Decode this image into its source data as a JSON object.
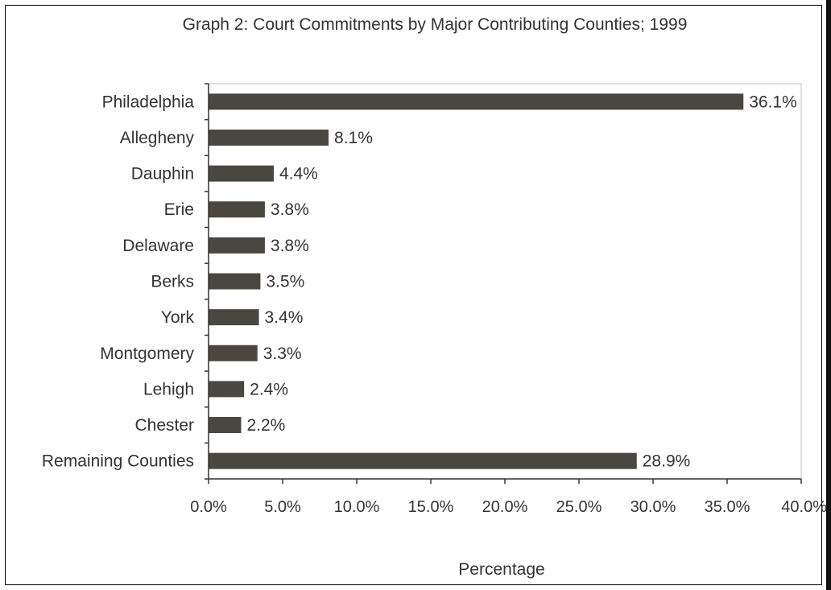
{
  "chart_data": {
    "type": "bar",
    "orientation": "horizontal",
    "title": "Graph 2: Court Commitments by Major Contributing Counties; 1999",
    "xlabel": "Percentage",
    "ylabel": "",
    "categories": [
      "Philadelphia",
      "Allegheny",
      "Dauphin",
      "Erie",
      "Delaware",
      "Berks",
      "York",
      "Montgomery",
      "Lehigh",
      "Chester",
      "Remaining Counties"
    ],
    "values": [
      36.1,
      8.1,
      4.4,
      3.8,
      3.8,
      3.5,
      3.4,
      3.3,
      2.4,
      2.2,
      28.9
    ],
    "value_labels": [
      "36.1%",
      "8.1%",
      "4.4%",
      "3.8%",
      "3.8%",
      "3.5%",
      "3.4%",
      "3.3%",
      "2.4%",
      "2.2%",
      "28.9%"
    ],
    "xlim": [
      0,
      40
    ],
    "xticks": [
      0,
      5,
      10,
      15,
      20,
      25,
      30,
      35,
      40
    ],
    "xtick_labels": [
      "0.0%",
      "5.0%",
      "10.0%",
      "15.0%",
      "20.0%",
      "25.0%",
      "30.0%",
      "35.0%",
      "40.0%"
    ],
    "grid": false,
    "legend": "none",
    "colors": {
      "bar": "#4a4640",
      "plot_border": "#c0c0c0",
      "axis": "#333333",
      "frame": "#000000"
    }
  }
}
